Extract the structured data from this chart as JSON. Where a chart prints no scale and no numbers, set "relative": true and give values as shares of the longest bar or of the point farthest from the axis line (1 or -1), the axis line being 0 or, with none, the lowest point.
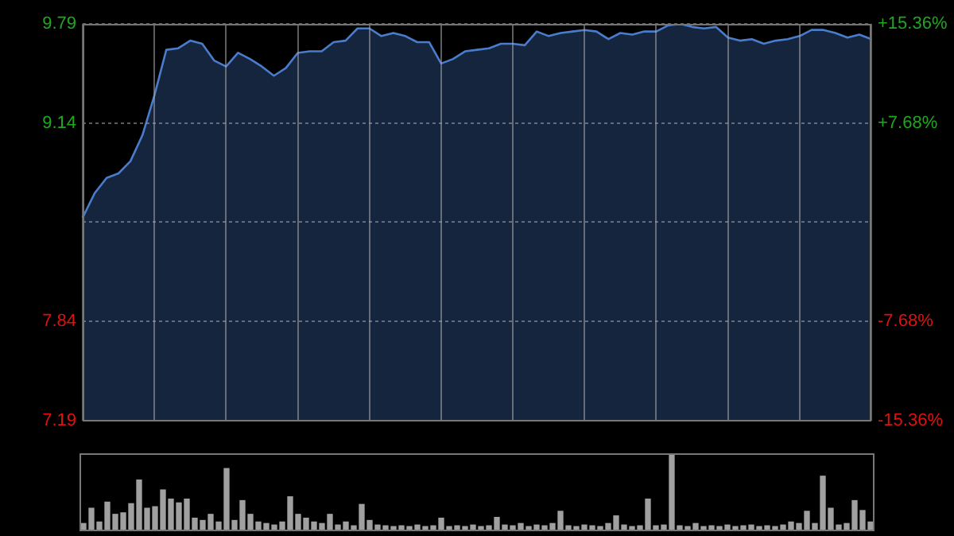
{
  "chart_data": [
    {
      "type": "area",
      "categories": [
        null,
        null,
        null,
        null,
        null,
        null,
        null,
        null,
        null,
        null,
        null,
        null,
        null,
        null,
        null,
        null,
        null,
        null,
        null,
        null,
        null,
        null,
        null,
        null,
        null,
        null,
        null,
        null,
        null,
        null,
        null,
        null,
        null,
        null,
        null,
        null,
        null,
        null,
        null,
        null,
        null,
        null,
        null,
        null,
        null,
        null,
        null,
        null,
        null,
        null,
        null,
        null,
        null,
        null,
        null,
        null,
        null,
        null,
        null,
        null,
        null,
        null,
        null,
        null,
        null,
        null,
        null
      ],
      "series": [
        {
          "color": "#4a7ccc",
          "values": [
            8.52,
            8.68,
            8.78,
            8.81,
            8.89,
            9.06,
            9.32,
            9.62,
            9.63,
            9.68,
            9.66,
            9.55,
            9.51,
            9.6,
            9.56,
            9.51,
            9.45,
            9.5,
            9.6,
            9.61,
            9.61,
            9.67,
            9.68,
            9.76,
            9.76,
            9.71,
            9.73,
            9.71,
            9.67,
            9.67,
            9.53,
            9.56,
            9.61,
            9.62,
            9.63,
            9.66,
            9.66,
            9.65,
            9.74,
            9.71,
            9.73,
            9.74,
            9.75,
            9.74,
            9.69,
            9.73,
            9.72,
            9.74,
            9.74,
            9.78,
            9.79,
            9.77,
            9.76,
            9.77,
            9.7,
            9.68,
            9.69,
            9.66,
            9.68,
            9.69,
            9.71,
            9.75,
            9.75,
            9.73,
            9.7,
            9.72,
            9.69
          ]
        }
      ],
      "ylim": [
        7.19,
        9.79
      ],
      "yticks": [
        7.19,
        7.84,
        {
          "value": 8.49,
          "label": null
        },
        9.14,
        9.79
      ],
      "y2lim": [
        -15.36,
        15.36
      ],
      "y2ticks": [
        {
          "value": -15.36,
          "label": "-15.36%"
        },
        {
          "value": -7.68,
          "label": "-7.68%"
        },
        {
          "value": 7.68,
          "label": "+7.68%"
        },
        {
          "value": 15.36,
          "label": "+15.36%"
        }
      ],
      "grid": true,
      "tick_labels": "y",
      "marker": "none",
      "line_style": "solid"
    },
    {
      "type": "bar",
      "relative": true,
      "color": "#a0a0a0",
      "tick_labels": false,
      "categories": [
        null,
        null,
        null,
        null,
        null,
        null,
        null,
        null,
        null,
        null,
        null,
        null,
        null,
        null,
        null,
        null,
        null,
        null,
        null,
        null,
        null,
        null,
        null,
        null,
        null,
        null,
        null,
        null,
        null,
        null,
        null,
        null,
        null,
        null,
        null,
        null,
        null,
        null,
        null,
        null,
        null,
        null,
        null,
        null,
        null,
        null,
        null,
        null,
        null,
        null,
        null,
        null,
        null,
        null,
        null,
        null,
        null,
        null,
        null,
        null,
        null,
        null,
        null,
        null,
        null,
        null,
        null,
        null,
        null,
        null,
        null,
        null,
        null,
        null,
        null,
        null,
        null,
        null,
        null,
        null,
        null,
        null,
        null,
        null,
        null,
        null,
        null,
        null,
        null,
        null,
        null,
        null,
        null,
        null,
        null,
        null,
        null,
        null,
        null,
        null
      ],
      "values": [
        0.08,
        0.28,
        0.1,
        0.36,
        0.2,
        0.22,
        0.34,
        0.65,
        0.28,
        0.3,
        0.52,
        0.4,
        0.35,
        0.4,
        0.15,
        0.12,
        0.2,
        0.1,
        0.8,
        0.12,
        0.38,
        0.2,
        0.1,
        0.08,
        0.06,
        0.1,
        0.43,
        0.2,
        0.15,
        0.1,
        0.08,
        0.2,
        0.06,
        0.1,
        0.05,
        0.33,
        0.12,
        0.06,
        0.05,
        0.04,
        0.05,
        0.04,
        0.06,
        0.04,
        0.05,
        0.15,
        0.04,
        0.05,
        0.04,
        0.06,
        0.04,
        0.05,
        0.16,
        0.06,
        0.05,
        0.08,
        0.04,
        0.06,
        0.05,
        0.08,
        0.24,
        0.05,
        0.04,
        0.06,
        0.05,
        0.04,
        0.08,
        0.18,
        0.06,
        0.04,
        0.05,
        0.4,
        0.05,
        0.06,
        1,
        0.05,
        0.04,
        0.08,
        0.04,
        0.05,
        0.04,
        0.06,
        0.04,
        0.05,
        0.06,
        0.04,
        0.05,
        0.04,
        0.06,
        0.1,
        0.08,
        0.24,
        0.08,
        0.7,
        0.28,
        0.06,
        0.08,
        0.38,
        0.25,
        0.1
      ]
    }
  ]
}
